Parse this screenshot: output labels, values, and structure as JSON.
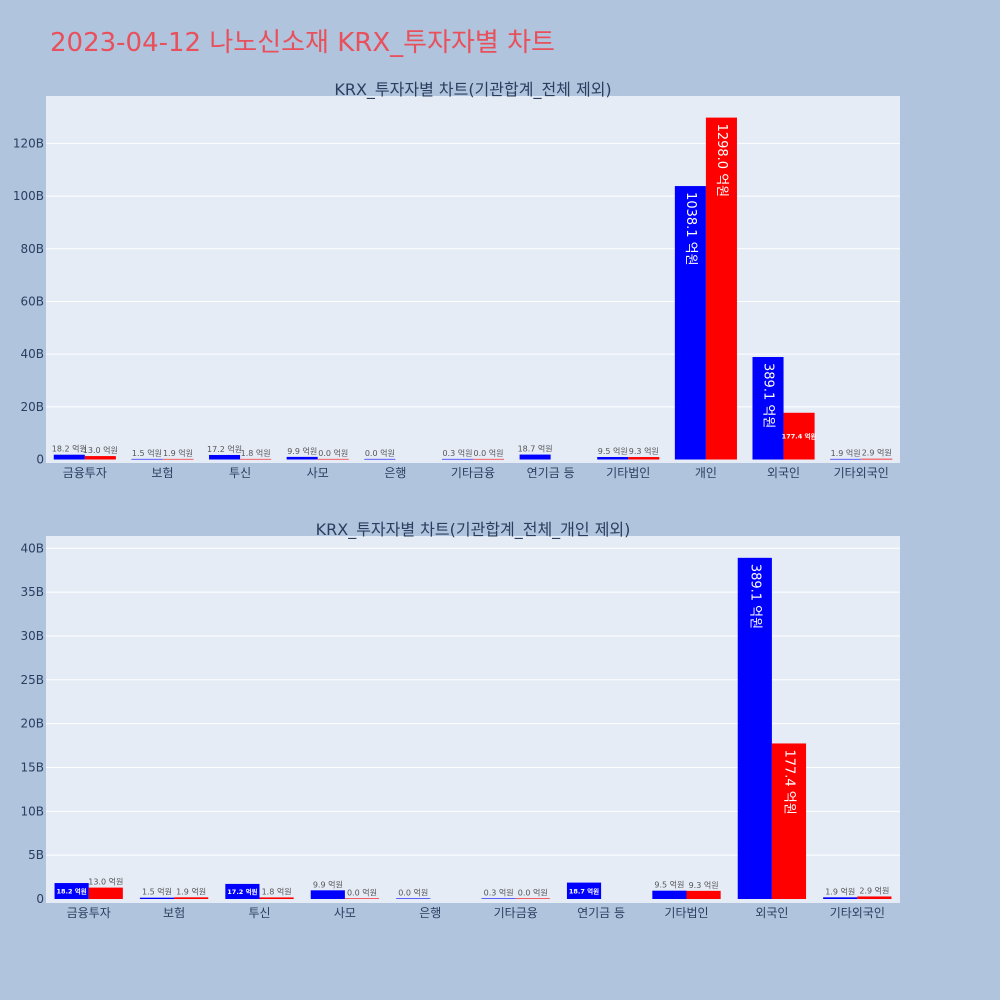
{
  "page_title": "2023-04-12 나노신소재 KRX_투자자별 차트",
  "colors": {
    "buy": "#0000ff",
    "sell": "#ff0000",
    "plot_bg": "#e5ecf6",
    "page_bg": "#b0c4de",
    "title": "#e8505b",
    "text": "#2a3f5f"
  },
  "chart_data": [
    {
      "type": "bar",
      "title": "KRX_투자자별 차트(기관합계_전체 제외)",
      "categories": [
        "금융투자",
        "보험",
        "투신",
        "사모",
        "은행",
        "기타금융",
        "연기금 등",
        "기타법인",
        "개인",
        "외국인",
        "기타외국인"
      ],
      "series": [
        {
          "values": [
            18.2,
            1.5,
            17.2,
            9.9,
            0.0,
            0.3,
            18.7,
            9.5,
            1038.1,
            389.1,
            1.9
          ],
          "color": "#0000ff"
        },
        {
          "values": [
            13.0,
            1.9,
            1.8,
            0.0,
            null,
            0.0,
            null,
            9.3,
            1298.0,
            177.4,
            2.9
          ],
          "color": "#ff0000"
        }
      ],
      "unit": "억원",
      "label_suffix": " 억원",
      "yticks": [
        "0",
        "20B",
        "40B",
        "60B",
        "80B",
        "100B",
        "120B"
      ],
      "ylim": [
        0,
        1380
      ],
      "ytick_step": 200,
      "grid": true
    },
    {
      "type": "bar",
      "title": "KRX_투자자별 차트(기관합계_전체_개인 제외)",
      "categories": [
        "금융투자",
        "보험",
        "투신",
        "사모",
        "은행",
        "기타금융",
        "연기금 등",
        "기타법인",
        "외국인",
        "기타외국인"
      ],
      "series": [
        {
          "values": [
            18.2,
            1.5,
            17.2,
            9.9,
            0.0,
            0.3,
            18.7,
            9.5,
            389.1,
            1.9
          ],
          "color": "#0000ff"
        },
        {
          "values": [
            13.0,
            1.9,
            1.8,
            0.0,
            null,
            0.0,
            null,
            9.3,
            177.4,
            2.9
          ],
          "color": "#ff0000"
        }
      ],
      "unit": "억원",
      "label_suffix": " 억원",
      "yticks": [
        "0",
        "5B",
        "10B",
        "15B",
        "20B",
        "25B",
        "30B",
        "35B",
        "40B"
      ],
      "ylim": [
        0,
        414
      ],
      "ytick_step": 50,
      "grid": true
    }
  ]
}
